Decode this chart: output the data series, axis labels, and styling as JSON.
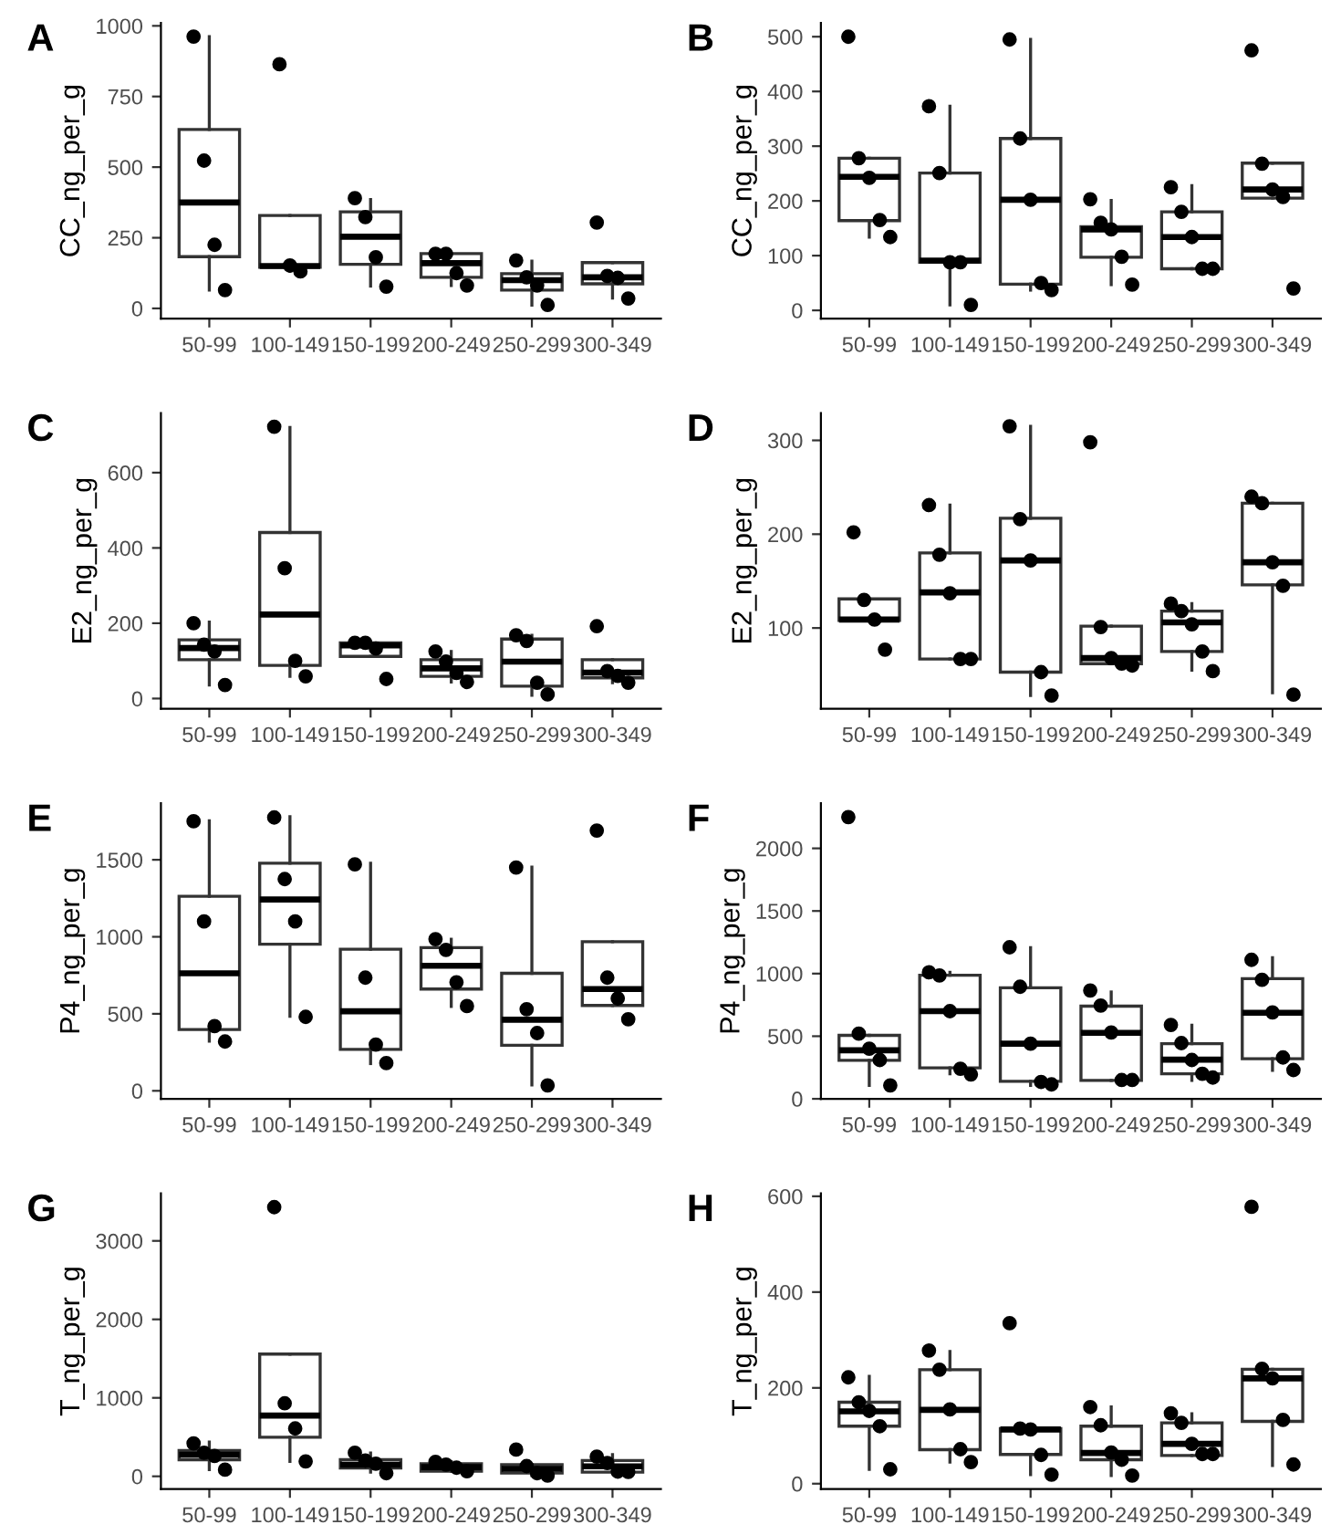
{
  "chart_data": [
    {
      "type": "box",
      "title": "A",
      "ylabel": "CC_ng_per_g",
      "categories": [
        "50-99",
        "100-149",
        "150-199",
        "200-249",
        "250-299",
        "300-349"
      ],
      "ylim": [
        -36,
        1010
      ],
      "yticks": [
        0,
        250,
        500,
        750,
        1000
      ],
      "boxes": [
        {
          "low": 65,
          "q1": 183,
          "median": 375,
          "q3": 633,
          "high": 962
        },
        {
          "low": 131,
          "q1": 146,
          "median": 150,
          "q3": 329,
          "high": 329
        },
        {
          "low": 79,
          "q1": 156,
          "median": 254,
          "q3": 342,
          "high": 385
        },
        {
          "low": 81,
          "q1": 110,
          "median": 160,
          "q3": 194,
          "high": 194
        },
        {
          "low": 12,
          "q1": 65,
          "median": 100,
          "q3": 123,
          "high": 167
        },
        {
          "low": 37,
          "q1": 87,
          "median": 110,
          "q3": 162,
          "high": 162
        }
      ],
      "series": [
        {
          "type": "scatter",
          "color": "#000000",
          "marker": "circle",
          "x": [
            "50-99",
            "50-99",
            "50-99",
            "50-99",
            "100-149",
            "100-149",
            "100-149",
            "150-199",
            "150-199",
            "150-199",
            "150-199",
            "200-249",
            "200-249",
            "200-249",
            "200-249",
            "250-299",
            "250-299",
            "250-299",
            "250-299",
            "300-349",
            "300-349",
            "300-349",
            "300-349"
          ],
          "values": [
            962,
            523,
            225,
            65,
            864,
            152,
            131,
            390,
            323,
            181,
            77,
            193,
            193,
            125,
            81,
            170,
            110,
            81,
            12,
            304,
            115,
            108,
            35
          ]
        }
      ]
    },
    {
      "type": "box",
      "title": "B",
      "ylabel": "CC_ng_per_g",
      "categories": [
        "50-99",
        "100-149",
        "150-199",
        "200-249",
        "250-299",
        "300-349"
      ],
      "ylim": [
        -15,
        525
      ],
      "yticks": [
        0,
        100,
        200,
        300,
        400,
        500
      ],
      "boxes": [
        {
          "low": 134,
          "q1": 164,
          "median": 244,
          "q3": 278,
          "high": 278
        },
        {
          "low": 10,
          "q1": 88,
          "median": 91,
          "q3": 251,
          "high": 373
        },
        {
          "low": 37,
          "q1": 48,
          "median": 202,
          "q3": 314,
          "high": 495
        },
        {
          "low": 47,
          "q1": 97,
          "median": 148,
          "q3": 153,
          "high": 201
        },
        {
          "low": 76,
          "q1": 76,
          "median": 134,
          "q3": 180,
          "high": 228
        },
        {
          "low": 205,
          "q1": 205,
          "median": 221,
          "q3": 269,
          "high": 269
        }
      ],
      "series": [
        {
          "type": "scatter",
          "color": "#000000",
          "marker": "circle",
          "x": [
            "50-99",
            "50-99",
            "50-99",
            "50-99",
            "50-99",
            "100-149",
            "100-149",
            "100-149",
            "100-149",
            "100-149",
            "150-199",
            "150-199",
            "150-199",
            "150-199",
            "150-199",
            "200-249",
            "200-249",
            "200-249",
            "200-249",
            "200-249",
            "250-299",
            "250-299",
            "250-299",
            "250-299",
            "250-299",
            "300-349",
            "300-349",
            "300-349",
            "300-349",
            "300-349"
          ],
          "values": [
            500,
            278,
            242,
            165,
            134,
            373,
            251,
            88,
            88,
            10,
            495,
            314,
            202,
            50,
            37,
            203,
            160,
            148,
            98,
            47,
            225,
            180,
            134,
            76,
            76,
            475,
            268,
            221,
            207,
            40
          ]
        }
      ]
    },
    {
      "type": "box",
      "title": "C",
      "ylabel": "E2_ng_per_g",
      "categories": [
        "50-99",
        "100-149",
        "150-199",
        "200-249",
        "250-299",
        "300-349"
      ],
      "ylim": [
        -27,
        758
      ],
      "yticks": [
        0,
        200,
        400,
        600
      ],
      "boxes": [
        {
          "low": 36,
          "q1": 103,
          "median": 134,
          "q3": 156,
          "high": 203
        },
        {
          "low": 59,
          "q1": 88,
          "median": 223,
          "q3": 441,
          "high": 720
        },
        {
          "low": 112,
          "q1": 112,
          "median": 141,
          "q3": 148,
          "high": 148
        },
        {
          "low": 44,
          "q1": 59,
          "median": 80,
          "q3": 103,
          "high": 125
        },
        {
          "low": 9,
          "q1": 33,
          "median": 98,
          "q3": 158,
          "high": 168
        },
        {
          "low": 42,
          "q1": 55,
          "median": 69,
          "q3": 103,
          "high": 103
        }
      ],
      "series": [
        {
          "type": "scatter",
          "color": "#000000",
          "marker": "circle",
          "x": [
            "50-99",
            "50-99",
            "50-99",
            "50-99",
            "100-149",
            "100-149",
            "100-149",
            "100-149",
            "150-199",
            "150-199",
            "150-199",
            "150-199",
            "200-249",
            "200-249",
            "200-249",
            "200-249",
            "250-299",
            "250-299",
            "250-299",
            "250-299",
            "300-349",
            "300-349",
            "300-349",
            "300-349"
          ],
          "values": [
            200,
            143,
            125,
            36,
            722,
            346,
            100,
            59,
            148,
            148,
            133,
            52,
            125,
            98,
            68,
            44,
            168,
            153,
            42,
            11,
            192,
            73,
            60,
            42
          ]
        }
      ]
    },
    {
      "type": "box",
      "title": "D",
      "ylabel": "E2_ng_per_g",
      "categories": [
        "50-99",
        "100-149",
        "150-199",
        "200-249",
        "250-299",
        "300-349"
      ],
      "ylim": [
        14,
        329
      ],
      "yticks": [
        100,
        200,
        300
      ],
      "boxes": [
        {
          "low": 108,
          "q1": 108,
          "median": 109,
          "q3": 131,
          "high": 131
        },
        {
          "low": 67,
          "q1": 67,
          "median": 138,
          "q3": 180,
          "high": 231
        },
        {
          "low": 28,
          "q1": 53,
          "median": 172,
          "q3": 217,
          "high": 315
        },
        {
          "low": 62,
          "q1": 62,
          "median": 68,
          "q3": 102,
          "high": 102
        },
        {
          "low": 55,
          "q1": 75,
          "median": 106,
          "q3": 118,
          "high": 126
        },
        {
          "low": 31,
          "q1": 146,
          "median": 170,
          "q3": 233,
          "high": 233
        }
      ],
      "series": [
        {
          "type": "scatter",
          "color": "#000000",
          "marker": "circle",
          "x": [
            "50-99",
            "50-99",
            "50-99",
            "50-99",
            "100-149",
            "100-149",
            "100-149",
            "100-149",
            "100-149",
            "150-199",
            "150-199",
            "150-199",
            "150-199",
            "150-199",
            "200-249",
            "200-249",
            "200-249",
            "200-249",
            "200-249",
            "250-299",
            "250-299",
            "250-299",
            "250-299",
            "250-299",
            "300-349",
            "300-349",
            "300-349",
            "300-349",
            "300-349"
          ],
          "values": [
            202,
            130,
            109,
            77,
            231,
            178,
            137,
            67,
            67,
            315,
            216,
            172,
            53,
            28,
            298,
            101,
            68,
            62,
            60,
            126,
            118,
            104,
            75,
            54,
            240,
            233,
            170,
            145,
            29
          ]
        }
      ]
    },
    {
      "type": "box",
      "title": "E",
      "ylabel": "P4_ng_per_g",
      "categories": [
        "50-99",
        "100-149",
        "150-199",
        "200-249",
        "250-299",
        "300-349"
      ],
      "ylim": [
        -52,
        1867
      ],
      "yticks": [
        0,
        500,
        1000,
        1500
      ],
      "boxes": [
        {
          "low": 323,
          "q1": 398,
          "median": 763,
          "q3": 1263,
          "high": 1753
        },
        {
          "low": 484,
          "q1": 952,
          "median": 1242,
          "q3": 1478,
          "high": 1780
        },
        {
          "low": 177,
          "q1": 269,
          "median": 516,
          "q3": 919,
          "high": 1478
        },
        {
          "low": 548,
          "q1": 661,
          "median": 812,
          "q3": 930,
          "high": 984
        },
        {
          "low": 38,
          "q1": 296,
          "median": 462,
          "q3": 763,
          "high": 1452
        },
        {
          "low": 554,
          "q1": 554,
          "median": 661,
          "q3": 968,
          "high": 968
        }
      ],
      "series": [
        {
          "type": "scatter",
          "color": "#000000",
          "marker": "circle",
          "x": [
            "50-99",
            "50-99",
            "50-99",
            "50-99",
            "100-149",
            "100-149",
            "100-149",
            "100-149",
            "150-199",
            "150-199",
            "150-199",
            "150-199",
            "200-249",
            "200-249",
            "200-249",
            "200-249",
            "250-299",
            "250-299",
            "250-299",
            "250-299",
            "300-349",
            "300-349",
            "300-349",
            "300-349"
          ],
          "values": [
            1750,
            1100,
            420,
            320,
            1775,
            1375,
            1100,
            480,
            1470,
            735,
            300,
            180,
            985,
            915,
            705,
            550,
            1450,
            530,
            375,
            35,
            1690,
            735,
            600,
            465
          ]
        }
      ]
    },
    {
      "type": "box",
      "title": "F",
      "ylabel": "P4_ng_per_g",
      "categories": [
        "50-99",
        "100-149",
        "150-199",
        "200-249",
        "250-299",
        "300-349"
      ],
      "ylim": [
        0,
        2360
      ],
      "yticks": [
        0,
        500,
        1000,
        1500,
        2000
      ],
      "boxes": [
        {
          "low": 107,
          "q1": 307,
          "median": 387,
          "q3": 507,
          "high": 507
        },
        {
          "low": 200,
          "q1": 247,
          "median": 700,
          "q3": 987,
          "high": 1010
        },
        {
          "low": 107,
          "q1": 140,
          "median": 440,
          "q3": 887,
          "high": 1207
        },
        {
          "low": 147,
          "q1": 147,
          "median": 527,
          "q3": 740,
          "high": 853
        },
        {
          "low": 147,
          "q1": 200,
          "median": 313,
          "q3": 440,
          "high": 587
        },
        {
          "low": 227,
          "q1": 320,
          "median": 687,
          "q3": 960,
          "high": 1127
        }
      ],
      "series": [
        {
          "type": "scatter",
          "color": "#000000",
          "marker": "circle",
          "x": [
            "50-99",
            "50-99",
            "50-99",
            "50-99",
            "50-99",
            "100-149",
            "100-149",
            "100-149",
            "100-149",
            "100-149",
            "150-199",
            "150-199",
            "150-199",
            "150-199",
            "150-199",
            "200-249",
            "200-249",
            "200-249",
            "200-249",
            "200-249",
            "250-299",
            "250-299",
            "250-299",
            "250-299",
            "250-299",
            "300-349",
            "300-349",
            "300-349",
            "300-349",
            "300-349"
          ],
          "values": [
            2250,
            520,
            400,
            310,
            107,
            1010,
            985,
            700,
            240,
            195,
            1210,
            895,
            440,
            135,
            115,
            865,
            745,
            530,
            150,
            150,
            590,
            445,
            310,
            200,
            170,
            1110,
            950,
            690,
            330,
            230
          ]
        }
      ]
    },
    {
      "type": "box",
      "title": "G",
      "ylabel": "T_ng_per_g",
      "categories": [
        "50-99",
        "100-149",
        "150-199",
        "200-249",
        "250-299",
        "300-349"
      ],
      "ylim": [
        -161,
        3605
      ],
      "yticks": [
        0,
        1000,
        2000,
        3000
      ],
      "boxes": [
        {
          "low": 85,
          "q1": 212,
          "median": 276,
          "q3": 329,
          "high": 435
        },
        {
          "low": 191,
          "q1": 498,
          "median": 774,
          "q3": 1558,
          "high": 1558
        },
        {
          "low": 53,
          "q1": 106,
          "median": 148,
          "q3": 212,
          "high": 297
        },
        {
          "low": 64,
          "q1": 64,
          "median": 117,
          "q3": 159,
          "high": 185
        },
        {
          "low": 10,
          "q1": 42,
          "median": 95,
          "q3": 148,
          "high": 148
        },
        {
          "low": 53,
          "q1": 53,
          "median": 127,
          "q3": 201,
          "high": 276
        }
      ],
      "series": [
        {
          "type": "scatter",
          "color": "#000000",
          "marker": "circle",
          "x": [
            "50-99",
            "50-99",
            "50-99",
            "50-99",
            "100-149",
            "100-149",
            "100-149",
            "100-149",
            "150-199",
            "150-199",
            "150-199",
            "150-199",
            "200-249",
            "200-249",
            "200-249",
            "200-249",
            "250-299",
            "250-299",
            "250-299",
            "250-299",
            "300-349",
            "300-349",
            "300-349",
            "300-349"
          ],
          "values": [
            420,
            300,
            260,
            85,
            3430,
            930,
            610,
            190,
            300,
            200,
            160,
            40,
            185,
            150,
            110,
            64,
            340,
            130,
            40,
            10,
            250,
            170,
            60,
            55
          ]
        }
      ]
    },
    {
      "type": "box",
      "title": "H",
      "ylabel": "T_ng_per_g",
      "categories": [
        "50-99",
        "100-149",
        "150-199",
        "200-249",
        "250-299",
        "300-349"
      ],
      "ylim": [
        -11,
        606
      ],
      "yticks": [
        0,
        200,
        400,
        600
      ],
      "boxes": [
        {
          "low": 30,
          "q1": 120,
          "median": 151,
          "q3": 170,
          "high": 224
        },
        {
          "low": 45,
          "q1": 71,
          "median": 154,
          "q3": 238,
          "high": 276
        },
        {
          "low": 19,
          "q1": 61,
          "median": 113,
          "q3": 115,
          "high": 115
        },
        {
          "low": 17,
          "q1": 50,
          "median": 64,
          "q3": 120,
          "high": 160
        },
        {
          "low": 59,
          "q1": 59,
          "median": 83,
          "q3": 127,
          "high": 146
        },
        {
          "low": 38,
          "q1": 130,
          "median": 220,
          "q3": 239,
          "high": 239
        }
      ],
      "series": [
        {
          "type": "scatter",
          "color": "#000000",
          "marker": "circle",
          "x": [
            "50-99",
            "50-99",
            "50-99",
            "50-99",
            "50-99",
            "100-149",
            "100-149",
            "100-149",
            "100-149",
            "100-149",
            "150-199",
            "150-199",
            "150-199",
            "150-199",
            "150-199",
            "200-249",
            "200-249",
            "200-249",
            "200-249",
            "200-249",
            "250-299",
            "250-299",
            "250-299",
            "250-299",
            "250-299",
            "300-349",
            "300-349",
            "300-349",
            "300-349",
            "300-349"
          ],
          "values": [
            222,
            170,
            152,
            120,
            30,
            278,
            238,
            155,
            72,
            45,
            335,
            115,
            113,
            60,
            19,
            160,
            122,
            65,
            50,
            17,
            147,
            127,
            83,
            62,
            62,
            578,
            240,
            220,
            133,
            40
          ]
        }
      ]
    }
  ]
}
